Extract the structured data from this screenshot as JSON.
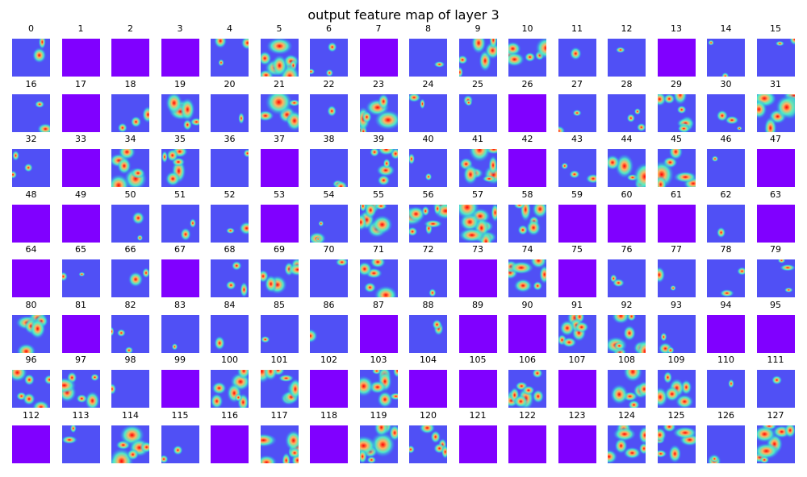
{
  "title": "output feature map of layer 3",
  "chart_data": {
    "type": "heatmap",
    "title": "output feature map of layer 3",
    "colormap": "rainbow",
    "rows": 8,
    "cols": 16,
    "channels": [
      0,
      1,
      2,
      3,
      4,
      5,
      6,
      7,
      8,
      9,
      10,
      11,
      12,
      13,
      14,
      15,
      16,
      17,
      18,
      19,
      20,
      21,
      22,
      23,
      24,
      25,
      26,
      27,
      28,
      29,
      30,
      31,
      32,
      33,
      34,
      35,
      36,
      37,
      38,
      39,
      40,
      41,
      42,
      43,
      44,
      45,
      46,
      47,
      48,
      49,
      50,
      51,
      52,
      53,
      54,
      55,
      56,
      57,
      58,
      59,
      60,
      61,
      62,
      63,
      64,
      65,
      66,
      67,
      68,
      69,
      70,
      71,
      72,
      73,
      74,
      75,
      76,
      77,
      78,
      79,
      80,
      81,
      82,
      83,
      84,
      85,
      86,
      87,
      88,
      89,
      90,
      91,
      92,
      93,
      94,
      95,
      96,
      97,
      98,
      99,
      100,
      101,
      102,
      103,
      104,
      105,
      106,
      107,
      108,
      109,
      110,
      111,
      112,
      113,
      114,
      115,
      116,
      117,
      118,
      119,
      120,
      121,
      122,
      123,
      124,
      125,
      126,
      127
    ],
    "empty_channels": [
      1,
      2,
      3,
      7,
      13,
      17,
      26,
      33,
      37,
      42,
      47,
      48,
      49,
      53,
      59,
      60,
      61,
      63,
      64,
      67,
      73,
      75,
      81,
      87,
      89,
      90,
      94,
      95,
      99,
      102,
      104,
      105,
      107,
      112,
      116,
      118,
      121,
      122,
      123
    ],
    "dense_channels": [
      5,
      9,
      10,
      19,
      21,
      23,
      29,
      31,
      34,
      35,
      39,
      41,
      44,
      45,
      55,
      56,
      57,
      58,
      69,
      71,
      74,
      80,
      91,
      92,
      96,
      97,
      100,
      101,
      103,
      106,
      108,
      109,
      114,
      117,
      119,
      120,
      124,
      125,
      127
    ],
    "colors": {
      "empty": "#8000ff",
      "background": "#5050f5",
      "low": "#2c7ef7",
      "mid": "#4df2c6",
      "high": "#ffb360",
      "peak": "#ff0000"
    }
  }
}
